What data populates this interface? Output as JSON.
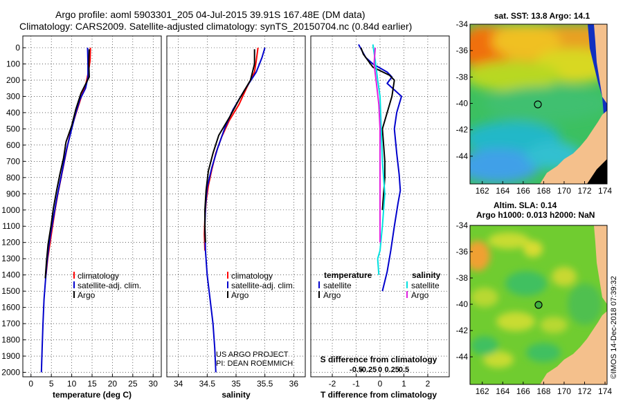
{
  "header": {
    "line1": "Argo profile: aoml 5903301_205 04-Jul-2015 39.91S 167.48E (DM data)",
    "line2": "Climatology: CARS2009. Satellite-adjusted climatology: synTS_20150704.nc (0.84d earlier)"
  },
  "colors": {
    "climatology": "#ff0000",
    "satellite": "#0000cc",
    "argo": "#000000",
    "sat_salinity": "#00e0e0",
    "argo_salinity": "#e020e0",
    "land": "#f4c08c"
  },
  "credits": {
    "project": "US ARGO PROJECT",
    "pi": "PI: DEAN ROEMMICH",
    "stamp": "©IMOS 14-Dec-2018 07:39:32"
  },
  "chart_data": [
    {
      "type": "line",
      "id": "temperature",
      "title": "",
      "xlabel": "temperature (deg C)",
      "ylabel": "",
      "xlim": [
        -2,
        32
      ],
      "ylim": [
        2100,
        0
      ],
      "xticks": [
        0,
        5,
        10,
        15,
        20,
        25,
        30
      ],
      "yticks": [
        0,
        100,
        200,
        300,
        400,
        500,
        600,
        700,
        800,
        900,
        1000,
        1100,
        1200,
        1300,
        1400,
        1500,
        1600,
        1700,
        1800,
        1900,
        2000
      ],
      "grid": true,
      "legend": [
        "climatology",
        "satellite-adj. clim.",
        "Argo"
      ],
      "series": [
        {
          "name": "climatology",
          "color": "#ff0000",
          "points": [
            [
              14.6,
              0
            ],
            [
              14.5,
              80
            ],
            [
              14.1,
              150
            ],
            [
              13.5,
              220
            ],
            [
              12.4,
              300
            ],
            [
              11.1,
              400
            ],
            [
              9.9,
              500
            ],
            [
              9.0,
              600
            ],
            [
              8.2,
              700
            ],
            [
              7.4,
              800
            ],
            [
              6.6,
              900
            ],
            [
              5.9,
              1000
            ],
            [
              5.3,
              1100
            ],
            [
              4.7,
              1200
            ],
            [
              4.1,
              1300
            ],
            [
              3.7,
              1400
            ]
          ]
        },
        {
          "name": "satellite-adj. clim.",
          "color": "#0000cc",
          "points": [
            [
              13.9,
              0
            ],
            [
              14.0,
              100
            ],
            [
              14.0,
              180
            ],
            [
              13.4,
              250
            ],
            [
              12.0,
              320
            ],
            [
              10.8,
              420
            ],
            [
              9.8,
              520
            ],
            [
              8.8,
              620
            ],
            [
              8.0,
              720
            ],
            [
              7.2,
              820
            ],
            [
              6.4,
              920
            ],
            [
              5.7,
              1020
            ],
            [
              5.0,
              1120
            ],
            [
              4.4,
              1220
            ],
            [
              3.9,
              1330
            ],
            [
              3.5,
              1450
            ],
            [
              3.2,
              1550
            ],
            [
              2.95,
              1700
            ],
            [
              2.75,
              1850
            ],
            [
              2.55,
              2000
            ]
          ]
        },
        {
          "name": "Argo",
          "color": "#000000",
          "points": [
            [
              14.3,
              10
            ],
            [
              14.2,
              100
            ],
            [
              14.3,
              180
            ],
            [
              12.3,
              280
            ],
            [
              11.0,
              380
            ],
            [
              10.0,
              480
            ],
            [
              8.6,
              580
            ],
            [
              8.0,
              680
            ],
            [
              7.1,
              780
            ],
            [
              6.3,
              880
            ],
            [
              5.5,
              990
            ],
            [
              4.9,
              1100
            ],
            [
              4.2,
              1210
            ],
            [
              3.8,
              1320
            ],
            [
              3.5,
              1420
            ]
          ]
        }
      ]
    },
    {
      "type": "line",
      "id": "salinity",
      "title": "",
      "xlabel": "salinity",
      "ylabel": "",
      "xlim": [
        33.8,
        36.2
      ],
      "ylim": [
        2100,
        0
      ],
      "xticks": [
        34,
        34.5,
        35,
        35.5,
        36
      ],
      "grid": true,
      "legend": [
        "climatology",
        "satellite-adj. clim.",
        "Argo"
      ],
      "series": [
        {
          "name": "climatology",
          "color": "#ff0000",
          "points": [
            [
              35.38,
              0
            ],
            [
              35.35,
              80
            ],
            [
              35.32,
              150
            ],
            [
              35.18,
              250
            ],
            [
              35.05,
              350
            ],
            [
              34.88,
              450
            ],
            [
              34.75,
              550
            ],
            [
              34.65,
              650
            ],
            [
              34.58,
              750
            ],
            [
              34.52,
              850
            ],
            [
              34.48,
              950
            ],
            [
              34.46,
              1050
            ],
            [
              34.45,
              1150
            ],
            [
              34.46,
              1250
            ]
          ]
        },
        {
          "name": "satellite-adj. clim.",
          "color": "#0000cc",
          "points": [
            [
              35.5,
              0
            ],
            [
              35.45,
              60
            ],
            [
              35.35,
              150
            ],
            [
              35.15,
              260
            ],
            [
              34.95,
              380
            ],
            [
              34.8,
              500
            ],
            [
              34.68,
              620
            ],
            [
              34.58,
              740
            ],
            [
              34.5,
              860
            ],
            [
              34.47,
              980
            ],
            [
              34.46,
              1100
            ],
            [
              34.47,
              1250
            ],
            [
              34.5,
              1400
            ],
            [
              34.55,
              1550
            ],
            [
              34.6,
              1700
            ],
            [
              34.63,
              1850
            ],
            [
              34.65,
              2000
            ]
          ]
        },
        {
          "name": "Argo",
          "color": "#000000",
          "points": [
            [
              35.32,
              10
            ],
            [
              35.32,
              100
            ],
            [
              35.25,
              200
            ],
            [
              35.05,
              320
            ],
            [
              34.9,
              420
            ],
            [
              34.7,
              540
            ],
            [
              34.6,
              650
            ],
            [
              34.52,
              760
            ],
            [
              34.48,
              880
            ],
            [
              34.46,
              1000
            ],
            [
              34.46,
              1120
            ],
            [
              34.47,
              1200
            ]
          ]
        }
      ]
    },
    {
      "type": "line",
      "id": "difference",
      "title": "",
      "xlabel": "T difference from climatology",
      "xlabel_top": "S difference from climatology",
      "xlim": [
        -2.9,
        2.9
      ],
      "ylim": [
        2100,
        0
      ],
      "xticks": [
        -2,
        -1,
        0,
        1,
        2
      ],
      "sticks": [
        "-0.5",
        "-0.25",
        "0",
        "0.25",
        "0.5"
      ],
      "grid": true,
      "legend_headers": [
        "temperature",
        "salinity"
      ],
      "legend": [
        "satellite",
        "Argo",
        "satellite",
        "Argo"
      ],
      "series": [
        {
          "name": "T satellite",
          "color": "#0000cc",
          "points": [
            [
              -0.9,
              -20
            ],
            [
              -0.6,
              60
            ],
            [
              -0.3,
              100
            ],
            [
              0.3,
              150
            ],
            [
              0.5,
              180
            ],
            [
              0.3,
              220
            ],
            [
              0.9,
              300
            ],
            [
              0.7,
              400
            ],
            [
              0.6,
              500
            ],
            [
              0.7,
              650
            ],
            [
              0.8,
              780
            ],
            [
              0.85,
              880
            ],
            [
              0.75,
              960
            ],
            [
              0.6,
              1100
            ],
            [
              0.45,
              1250
            ],
            [
              0.3,
              1380
            ],
            [
              0.1,
              1500
            ]
          ]
        },
        {
          "name": "T Argo",
          "color": "#000000",
          "points": [
            [
              -0.8,
              0
            ],
            [
              -0.7,
              40
            ],
            [
              -0.5,
              80
            ],
            [
              -0.3,
              120
            ],
            [
              0.4,
              170
            ],
            [
              0.6,
              200
            ],
            [
              0.5,
              300
            ],
            [
              0.3,
              400
            ],
            [
              0.1,
              500
            ],
            [
              0.15,
              600
            ],
            [
              0.2,
              700
            ],
            [
              0.2,
              800
            ],
            [
              0.15,
              900
            ],
            [
              0.1,
              1000
            ]
          ]
        },
        {
          "name": "S satellite",
          "color": "#00e0e0",
          "points": [
            [
              -0.3,
              -20
            ],
            [
              -0.2,
              80
            ],
            [
              -0.1,
              200
            ],
            [
              0.0,
              300
            ],
            [
              0.05,
              500
            ],
            [
              0.1,
              700
            ],
            [
              0.2,
              900
            ],
            [
              0.1,
              1100
            ],
            [
              0.0,
              1250
            ],
            [
              -0.1,
              1300
            ],
            [
              -0.05,
              1400
            ]
          ]
        },
        {
          "name": "S Argo",
          "color": "#e020e0",
          "points": [
            [
              -0.2,
              0
            ],
            [
              -0.25,
              100
            ],
            [
              -0.15,
              220
            ],
            [
              -0.05,
              350
            ],
            [
              0.0,
              500
            ],
            [
              0.0,
              800
            ],
            [
              0.0,
              1000
            ],
            [
              0.0,
              1200
            ]
          ]
        }
      ]
    }
  ],
  "map_top": {
    "title": "sat. SST: 13.8 Argo: 14.1",
    "xticks": [
      "162",
      "164",
      "166",
      "168",
      "170",
      "172",
      "174"
    ],
    "yticks": [
      "-34",
      "-36",
      "-38",
      "-40",
      "-42",
      "-44"
    ],
    "float_lon": 167.48,
    "float_lat": -39.91
  },
  "map_bottom": {
    "title1": "Altim. SLA: 0.14",
    "title2": "Argo h1000: 0.013 h2000: NaN",
    "xticks": [
      "162",
      "164",
      "166",
      "168",
      "170",
      "172",
      "174"
    ],
    "yticks": [
      "-34",
      "-36",
      "-38",
      "-40",
      "-42",
      "-44"
    ]
  }
}
